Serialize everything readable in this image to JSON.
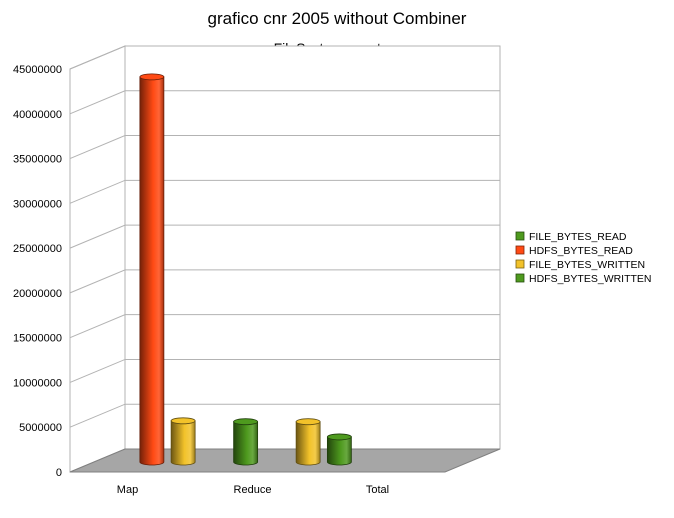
{
  "chart_data": {
    "type": "bar",
    "title": "grafico cnr 2005 without Combiner",
    "subtitle": "FileSystem counters",
    "categories": [
      "Map",
      "Reduce",
      "Total"
    ],
    "ylim": [
      0,
      45000000
    ],
    "yticks": [
      0,
      5000000,
      10000000,
      15000000,
      20000000,
      25000000,
      30000000,
      35000000,
      40000000,
      45000000
    ],
    "grid": true,
    "legend_position": "right",
    "series": [
      {
        "name": "FILE_BYTES_READ",
        "color": "#4e9a1e",
        "values": [
          0,
          4500000,
          0
        ]
      },
      {
        "name": "HDFS_BYTES_READ",
        "color": "#ff4a14",
        "values": [
          43000000,
          0,
          0
        ]
      },
      {
        "name": "FILE_BYTES_WRITTEN",
        "color": "#f2c22a",
        "values": [
          4600000,
          4500000,
          0
        ]
      },
      {
        "name": "HDFS_BYTES_WRITTEN",
        "color": "#4e9a1e",
        "values": [
          0,
          2800000,
          0
        ]
      }
    ]
  }
}
